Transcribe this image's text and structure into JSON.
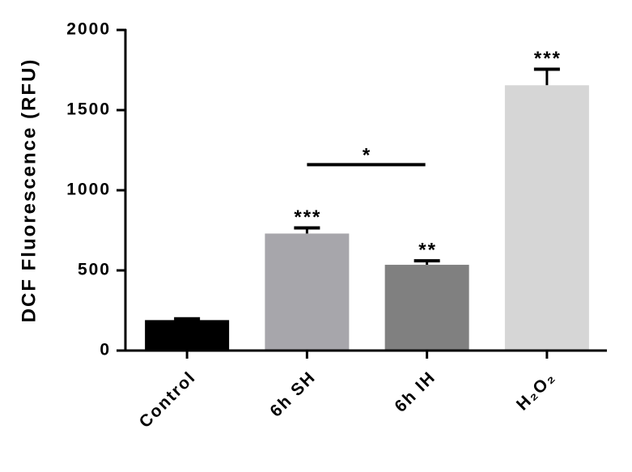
{
  "chart_data": {
    "type": "bar",
    "y_label": "DCF Fluorescence (RFU)",
    "categories": [
      "Control",
      "6h SH",
      "6h IH",
      "H₂O₂"
    ],
    "values": [
      190,
      730,
      535,
      1655
    ],
    "errors": [
      8,
      35,
      25,
      100
    ],
    "colors": [
      "#000000",
      "#a7a6ab",
      "#808080",
      "#d6d6d6"
    ],
    "significance": [
      null,
      "***",
      "**",
      "***"
    ],
    "comparison": {
      "from": 1,
      "to": 2,
      "label": "*",
      "y": 1160
    },
    "ylim": [
      0,
      2000
    ],
    "yticks": [
      0,
      500,
      1000,
      1500,
      2000
    ]
  }
}
